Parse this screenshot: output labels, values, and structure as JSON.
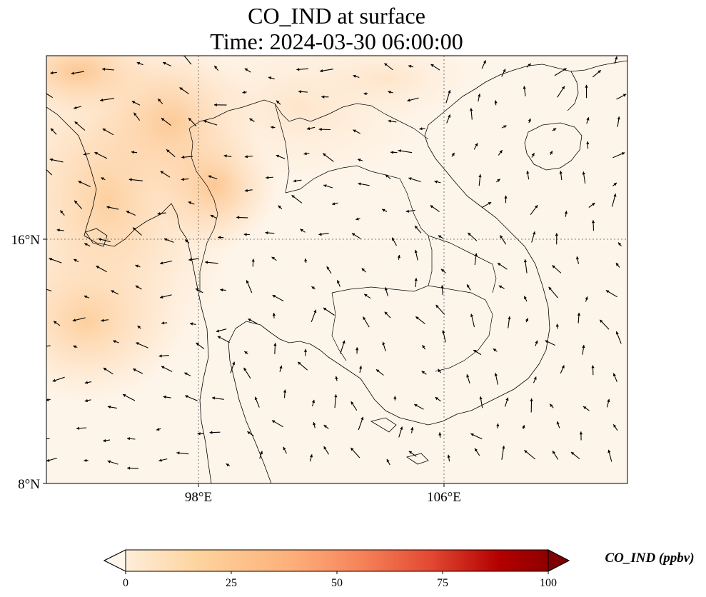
{
  "title": {
    "line1": "CO_IND at surface",
    "line2": "Time: 2024-03-30 06:00:00"
  },
  "axes": {
    "lat_ticks": [
      {
        "label": "16°N",
        "value": 16
      },
      {
        "label": "8°N",
        "value": 8
      }
    ],
    "lon_ticks": [
      {
        "label": "98°E",
        "value": 98
      },
      {
        "label": "106°E",
        "value": 106
      }
    ],
    "lon_range": [
      93.05,
      112
    ],
    "lat_range": [
      8,
      22
    ],
    "gridlines": "dotted"
  },
  "colorbar": {
    "label": "CO_IND (ppbv)",
    "min": 0,
    "max": 100,
    "extend": "both",
    "ticks": [
      {
        "label": "0",
        "value": 0
      },
      {
        "label": "25",
        "value": 25
      },
      {
        "label": "50",
        "value": 50
      },
      {
        "label": "75",
        "value": 75
      },
      {
        "label": "100",
        "value": 100
      }
    ],
    "colormap": [
      "#fff5eb",
      "#fee6ce",
      "#fdd0a2",
      "#fdae6b",
      "#fd8d3c",
      "#f16913",
      "#d94801",
      "#a63603",
      "#7f2704"
    ],
    "cmap_red": [
      "#fff5eb",
      "#fdd49e",
      "#fc8d59",
      "#e34a33",
      "#b30000",
      "#7f0000"
    ]
  },
  "map": {
    "background_color": "#fef5ea",
    "plume_color": "#fdcf9f",
    "region": "Mainland Southeast Asia",
    "wind_vectors": "quiver arrows, black"
  }
}
